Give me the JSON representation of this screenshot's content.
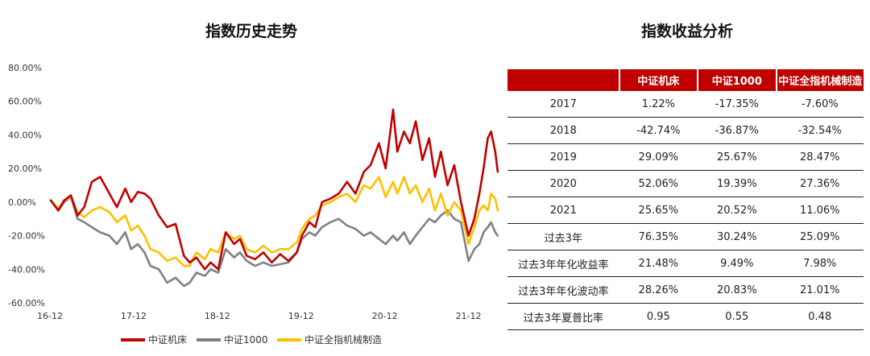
{
  "chart_title": "指数历史走势",
  "table_title": "指数收益分析",
  "colors": {
    "machine_tool": "#c00000",
    "csi1000": "#808080",
    "full_mech": "#ffc000",
    "header_bg": "#c00000"
  },
  "chart_data": {
    "type": "line",
    "title": "指数历史走势",
    "xlabel": "",
    "ylabel": "",
    "x_ticks": [
      "16-12",
      "17-12",
      "18-12",
      "19-12",
      "20-12",
      "21-12"
    ],
    "y_ticks": [
      "80.00%",
      "60.00%",
      "40.00%",
      "20.00%",
      "0.00%",
      "-20.00%",
      "-40.00%",
      "-60.00%"
    ],
    "ylim": [
      -60,
      80
    ],
    "xlim": [
      2016.95,
      2022.32
    ],
    "legend": [
      "中证机床",
      "中证1000",
      "中证全指机械制造"
    ],
    "series": [
      {
        "name": "中证机床",
        "x": [
          2016.96,
          2017.05,
          2017.12,
          2017.2,
          2017.28,
          2017.36,
          2017.45,
          2017.55,
          2017.66,
          2017.75,
          2017.85,
          2017.92,
          2018.0,
          2018.08,
          2018.15,
          2018.25,
          2018.35,
          2018.45,
          2018.55,
          2018.62,
          2018.7,
          2018.8,
          2018.87,
          2018.96,
          2019.05,
          2019.15,
          2019.22,
          2019.3,
          2019.4,
          2019.5,
          2019.6,
          2019.7,
          2019.8,
          2019.9,
          2019.96,
          2020.05,
          2020.12,
          2020.2,
          2020.3,
          2020.4,
          2020.5,
          2020.6,
          2020.7,
          2020.78,
          2020.88,
          2020.96,
          2021.05,
          2021.1,
          2021.18,
          2021.25,
          2021.32,
          2021.4,
          2021.48,
          2021.55,
          2021.62,
          2021.7,
          2021.78,
          2021.86,
          2021.95,
          2022.02,
          2022.08,
          2022.13,
          2022.18,
          2022.22,
          2022.27,
          2022.3
        ],
        "y": [
          1,
          -5,
          1,
          4,
          -8,
          -3,
          12,
          15,
          5,
          -3,
          8,
          0,
          6,
          5,
          2,
          -8,
          -15,
          -13,
          -32,
          -36,
          -33,
          -40,
          -36,
          -40,
          -18,
          -25,
          -22,
          -32,
          -34,
          -30,
          -36,
          -31,
          -35,
          -30,
          -20,
          -12,
          -15,
          0,
          2,
          5,
          12,
          5,
          18,
          22,
          35,
          20,
          55,
          30,
          42,
          35,
          48,
          25,
          38,
          15,
          30,
          10,
          22,
          0,
          -20,
          -10,
          5,
          20,
          38,
          42,
          30,
          18
        ]
      },
      {
        "name": "中证1000",
        "x": [
          2016.96,
          2017.05,
          2017.12,
          2017.2,
          2017.28,
          2017.36,
          2017.45,
          2017.55,
          2017.66,
          2017.75,
          2017.85,
          2017.92,
          2018.0,
          2018.08,
          2018.15,
          2018.25,
          2018.35,
          2018.45,
          2018.55,
          2018.62,
          2018.7,
          2018.8,
          2018.87,
          2018.96,
          2019.05,
          2019.15,
          2019.22,
          2019.3,
          2019.4,
          2019.5,
          2019.6,
          2019.7,
          2019.8,
          2019.9,
          2019.96,
          2020.05,
          2020.12,
          2020.2,
          2020.3,
          2020.4,
          2020.5,
          2020.6,
          2020.7,
          2020.78,
          2020.88,
          2020.96,
          2021.05,
          2021.1,
          2021.18,
          2021.25,
          2021.32,
          2021.4,
          2021.48,
          2021.55,
          2021.62,
          2021.7,
          2021.78,
          2021.86,
          2021.95,
          2022.02,
          2022.08,
          2022.13,
          2022.18,
          2022.22,
          2022.27,
          2022.3
        ],
        "y": [
          1,
          -5,
          0,
          3,
          -10,
          -12,
          -15,
          -18,
          -20,
          -25,
          -18,
          -28,
          -25,
          -30,
          -38,
          -40,
          -48,
          -45,
          -50,
          -48,
          -42,
          -44,
          -40,
          -42,
          -28,
          -33,
          -30,
          -35,
          -38,
          -36,
          -38,
          -37,
          -36,
          -30,
          -22,
          -18,
          -20,
          -15,
          -12,
          -10,
          -14,
          -16,
          -20,
          -18,
          -22,
          -25,
          -20,
          -23,
          -18,
          -25,
          -20,
          -15,
          -10,
          -12,
          -8,
          -5,
          -10,
          -12,
          -35,
          -28,
          -25,
          -18,
          -15,
          -12,
          -18,
          -20
        ]
      },
      {
        "name": "中证全指机械制造",
        "x": [
          2016.96,
          2017.05,
          2017.12,
          2017.2,
          2017.28,
          2017.36,
          2017.45,
          2017.55,
          2017.66,
          2017.75,
          2017.85,
          2017.92,
          2018.0,
          2018.08,
          2018.15,
          2018.25,
          2018.35,
          2018.45,
          2018.55,
          2018.62,
          2018.7,
          2018.8,
          2018.87,
          2018.96,
          2019.05,
          2019.15,
          2019.22,
          2019.3,
          2019.4,
          2019.5,
          2019.6,
          2019.7,
          2019.8,
          2019.9,
          2019.96,
          2020.05,
          2020.12,
          2020.2,
          2020.3,
          2020.4,
          2020.5,
          2020.6,
          2020.7,
          2020.78,
          2020.88,
          2020.96,
          2021.05,
          2021.1,
          2021.18,
          2021.25,
          2021.32,
          2021.4,
          2021.48,
          2021.55,
          2021.62,
          2021.7,
          2021.78,
          2021.86,
          2021.95,
          2022.02,
          2022.08,
          2022.13,
          2022.18,
          2022.22,
          2022.27,
          2022.3
        ],
        "y": [
          1,
          -4,
          1,
          3,
          -6,
          -9,
          -5,
          -3,
          -6,
          -12,
          -8,
          -17,
          -14,
          -20,
          -28,
          -30,
          -35,
          -33,
          -38,
          -38,
          -30,
          -34,
          -28,
          -30,
          -18,
          -22,
          -20,
          -28,
          -30,
          -26,
          -30,
          -28,
          -28,
          -24,
          -16,
          -10,
          -8,
          -2,
          0,
          3,
          5,
          0,
          10,
          8,
          15,
          3,
          12,
          5,
          15,
          5,
          10,
          0,
          8,
          -5,
          5,
          -8,
          0,
          -5,
          -25,
          -15,
          -5,
          -2,
          -5,
          5,
          2,
          -5
        ]
      }
    ]
  },
  "table": {
    "headers": [
      "",
      "中证机床",
      "中证1000",
      "中证全指机械制造"
    ],
    "rows": [
      {
        "label": "2017",
        "v1": "1.22%",
        "v2": "-17.35%",
        "v3": "-7.60%"
      },
      {
        "label": "2018",
        "v1": "-42.74%",
        "v2": "-36.87%",
        "v3": "-32.54%"
      },
      {
        "label": "2019",
        "v1": "29.09%",
        "v2": "25.67%",
        "v3": "28.47%"
      },
      {
        "label": "2020",
        "v1": "52.06%",
        "v2": "19.39%",
        "v3": "27.36%"
      },
      {
        "label": "2021",
        "v1": "25.65%",
        "v2": "20.52%",
        "v3": "11.06%"
      },
      {
        "label": "过去3年",
        "v1": "76.35%",
        "v2": "30.24%",
        "v3": "25.09%"
      },
      {
        "label": "过去3年年化收益率",
        "v1": "21.48%",
        "v2": "9.49%",
        "v3": "7.98%"
      },
      {
        "label": "过去3年年化波动率",
        "v1": "28.26%",
        "v2": "20.83%",
        "v3": "21.01%"
      },
      {
        "label": "过去3年夏普比率",
        "v1": "0.95",
        "v2": "0.55",
        "v3": "0.48"
      }
    ]
  }
}
